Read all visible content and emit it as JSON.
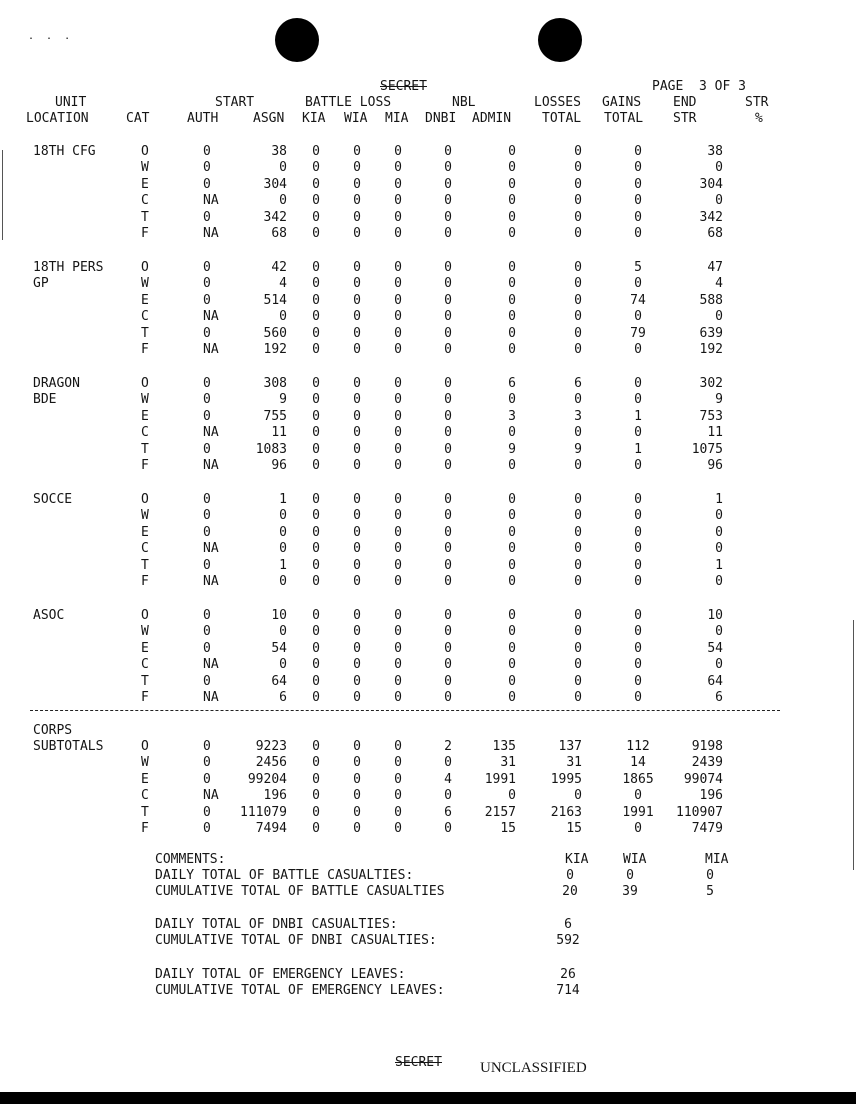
{
  "header": {
    "classification": "SECRET",
    "page": "PAGE  3 OF 3",
    "columns_line1": [
      {
        "key": "unit",
        "label": "UNIT"
      },
      {
        "key": "start",
        "label": "START"
      },
      {
        "key": "battle",
        "label": "BATTLE LOSS"
      },
      {
        "key": "nbl",
        "label": "NBL"
      },
      {
        "key": "losses",
        "label": "LOSSES"
      },
      {
        "key": "gains",
        "label": "GAINS"
      },
      {
        "key": "end",
        "label": "END"
      },
      {
        "key": "str",
        "label": "STR"
      }
    ],
    "columns_line2": [
      {
        "key": "location",
        "label": "LOCATION"
      },
      {
        "key": "cat",
        "label": "CAT"
      },
      {
        "key": "auth",
        "label": "AUTH"
      },
      {
        "key": "asgn",
        "label": "ASGN"
      },
      {
        "key": "kia",
        "label": "KIA"
      },
      {
        "key": "wia",
        "label": "WIA"
      },
      {
        "key": "mia",
        "label": "MIA"
      },
      {
        "key": "dnbi",
        "label": "DNBI"
      },
      {
        "key": "admin",
        "label": "ADMIN"
      },
      {
        "key": "losses_total",
        "label": "TOTAL"
      },
      {
        "key": "gains_total",
        "label": "TOTAL"
      },
      {
        "key": "end_str",
        "label": "STR"
      },
      {
        "key": "pct",
        "label": "%"
      }
    ]
  },
  "units": [
    {
      "name": [
        "18TH CFG"
      ],
      "rows": [
        [
          "O",
          "0",
          "38",
          "0",
          "0",
          "0",
          "0",
          "0",
          "0",
          "0",
          "38"
        ],
        [
          "W",
          "0",
          "0",
          "0",
          "0",
          "0",
          "0",
          "0",
          "0",
          "0",
          "0"
        ],
        [
          "E",
          "0",
          "304",
          "0",
          "0",
          "0",
          "0",
          "0",
          "0",
          "0",
          "304"
        ],
        [
          "C",
          "NA",
          "0",
          "0",
          "0",
          "0",
          "0",
          "0",
          "0",
          "0",
          "0"
        ],
        [
          "T",
          "0",
          "342",
          "0",
          "0",
          "0",
          "0",
          "0",
          "0",
          "0",
          "342"
        ],
        [
          "F",
          "NA",
          "68",
          "0",
          "0",
          "0",
          "0",
          "0",
          "0",
          "0",
          "68"
        ]
      ]
    },
    {
      "name": [
        "18TH PERS",
        "GP"
      ],
      "rows": [
        [
          "O",
          "0",
          "42",
          "0",
          "0",
          "0",
          "0",
          "0",
          "0",
          "5",
          "47"
        ],
        [
          "W",
          "0",
          "4",
          "0",
          "0",
          "0",
          "0",
          "0",
          "0",
          "0",
          "4"
        ],
        [
          "E",
          "0",
          "514",
          "0",
          "0",
          "0",
          "0",
          "0",
          "0",
          "74",
          "588"
        ],
        [
          "C",
          "NA",
          "0",
          "0",
          "0",
          "0",
          "0",
          "0",
          "0",
          "0",
          "0"
        ],
        [
          "T",
          "0",
          "560",
          "0",
          "0",
          "0",
          "0",
          "0",
          "0",
          "79",
          "639"
        ],
        [
          "F",
          "NA",
          "192",
          "0",
          "0",
          "0",
          "0",
          "0",
          "0",
          "0",
          "192"
        ]
      ]
    },
    {
      "name": [
        "DRAGON",
        "BDE"
      ],
      "rows": [
        [
          "O",
          "0",
          "308",
          "0",
          "0",
          "0",
          "0",
          "6",
          "6",
          "0",
          "302"
        ],
        [
          "W",
          "0",
          "9",
          "0",
          "0",
          "0",
          "0",
          "0",
          "0",
          "0",
          "9"
        ],
        [
          "E",
          "0",
          "755",
          "0",
          "0",
          "0",
          "0",
          "3",
          "3",
          "1",
          "753"
        ],
        [
          "C",
          "NA",
          "11",
          "0",
          "0",
          "0",
          "0",
          "0",
          "0",
          "0",
          "11"
        ],
        [
          "T",
          "0",
          "1083",
          "0",
          "0",
          "0",
          "0",
          "9",
          "9",
          "1",
          "1075"
        ],
        [
          "F",
          "NA",
          "96",
          "0",
          "0",
          "0",
          "0",
          "0",
          "0",
          "0",
          "96"
        ]
      ]
    },
    {
      "name": [
        "SOCCE"
      ],
      "rows": [
        [
          "O",
          "0",
          "1",
          "0",
          "0",
          "0",
          "0",
          "0",
          "0",
          "0",
          "1"
        ],
        [
          "W",
          "0",
          "0",
          "0",
          "0",
          "0",
          "0",
          "0",
          "0",
          "0",
          "0"
        ],
        [
          "E",
          "0",
          "0",
          "0",
          "0",
          "0",
          "0",
          "0",
          "0",
          "0",
          "0"
        ],
        [
          "C",
          "NA",
          "0",
          "0",
          "0",
          "0",
          "0",
          "0",
          "0",
          "0",
          "0"
        ],
        [
          "T",
          "0",
          "1",
          "0",
          "0",
          "0",
          "0",
          "0",
          "0",
          "0",
          "1"
        ],
        [
          "F",
          "NA",
          "0",
          "0",
          "0",
          "0",
          "0",
          "0",
          "0",
          "0",
          "0"
        ]
      ]
    },
    {
      "name": [
        "ASOC"
      ],
      "rows": [
        [
          "O",
          "0",
          "10",
          "0",
          "0",
          "0",
          "0",
          "0",
          "0",
          "0",
          "10"
        ],
        [
          "W",
          "0",
          "0",
          "0",
          "0",
          "0",
          "0",
          "0",
          "0",
          "0",
          "0"
        ],
        [
          "E",
          "0",
          "54",
          "0",
          "0",
          "0",
          "0",
          "0",
          "0",
          "0",
          "54"
        ],
        [
          "C",
          "NA",
          "0",
          "0",
          "0",
          "0",
          "0",
          "0",
          "0",
          "0",
          "0"
        ],
        [
          "T",
          "0",
          "64",
          "0",
          "0",
          "0",
          "0",
          "0",
          "0",
          "0",
          "64"
        ],
        [
          "F",
          "NA",
          "6",
          "0",
          "0",
          "0",
          "0",
          "0",
          "0",
          "0",
          "6"
        ]
      ]
    }
  ],
  "subtotals": {
    "name": [
      "CORPS",
      "SUBTOTALS"
    ],
    "rows": [
      [
        "O",
        "0",
        "9223",
        "0",
        "0",
        "0",
        "2",
        "135",
        "137",
        "112",
        "9198"
      ],
      [
        "W",
        "0",
        "2456",
        "0",
        "0",
        "0",
        "0",
        "31",
        "31",
        "14",
        "2439"
      ],
      [
        "E",
        "0",
        "99204",
        "0",
        "0",
        "0",
        "4",
        "1991",
        "1995",
        "1865",
        "99074"
      ],
      [
        "C",
        "NA",
        "196",
        "0",
        "0",
        "0",
        "0",
        "0",
        "0",
        "0",
        "196"
      ],
      [
        "T",
        "0",
        "111079",
        "0",
        "0",
        "0",
        "6",
        "2157",
        "2163",
        "1991",
        "110907"
      ],
      [
        "F",
        "0",
        "7494",
        "0",
        "0",
        "0",
        "0",
        "15",
        "15",
        "0",
        "7479"
      ]
    ]
  },
  "comments": {
    "title": "COMMENTS:",
    "heads": [
      "KIA",
      "WIA",
      "MIA"
    ],
    "lines": [
      {
        "label": "DAILY TOTAL OF BATTLE CASUALTIES:",
        "vals": [
          "0",
          "0",
          "0"
        ]
      },
      {
        "label": "CUMULATIVE TOTAL OF BATTLE CASUALTIES",
        "vals": [
          "20",
          "39",
          "5"
        ]
      },
      {
        "label": "DAILY TOTAL OF DNBI CASUALTIES:",
        "vals": [
          "6"
        ]
      },
      {
        "label": "CUMULATIVE TOTAL OF DNBI CASUALTIES:",
        "vals": [
          "592"
        ]
      },
      {
        "label": "DAILY TOTAL OF EMERGENCY LEAVES:",
        "vals": [
          "26"
        ]
      },
      {
        "label": "CUMULATIVE TOTAL OF EMERGENCY LEAVES:",
        "vals": [
          "714"
        ]
      }
    ]
  },
  "footer": {
    "classification_struck": "SECRET",
    "classification": "UNCLASSIFIED"
  }
}
